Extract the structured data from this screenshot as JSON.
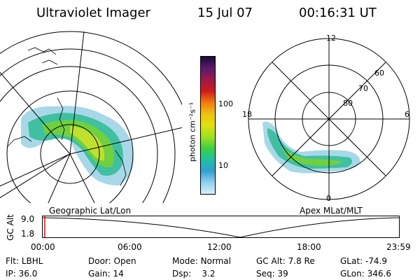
{
  "header": {
    "title": "Ultraviolet Imager",
    "date": "15 Jul 07",
    "time": "00:16:31 UT"
  },
  "left_panel": {
    "caption": "Geographic Lat/Lon"
  },
  "right_panel": {
    "caption": "Apex MLat/MLT",
    "mlt_labels": {
      "top": "12",
      "left": "18",
      "right": "6",
      "bottom": "0"
    },
    "lat_labels": [
      "60",
      "70",
      "80"
    ]
  },
  "colorbar": {
    "unit_label": "photon cm⁻²s⁻¹",
    "tick_100": "100",
    "tick_10": "10",
    "colors": [
      "#1a0a3a",
      "#5a1a6a",
      "#9a1a4a",
      "#d01a1a",
      "#f07a10",
      "#f0c010",
      "#e0e010",
      "#a0e020",
      "#40d040",
      "#20c0a0",
      "#30a0d0",
      "#90d0f0",
      "#d8f0f8"
    ]
  },
  "altitude_plot": {
    "ylabel": "GC Alt",
    "y_ticks": [
      "9.0",
      "1.8"
    ],
    "x_ticks": [
      "00:00",
      "06:00",
      "12:00",
      "18:00",
      "23:59"
    ],
    "current_marker_color": "#ff0000"
  },
  "info": {
    "row1": [
      {
        "label": "Flt:",
        "value": "LBHL"
      },
      {
        "label": "Door:",
        "value": "Open"
      },
      {
        "label": "Mode:",
        "value": "Normal"
      },
      {
        "label": "GC Alt:",
        "value": "7.8 Re"
      },
      {
        "label": "GLat:",
        "value": "-74.9"
      }
    ],
    "row2": [
      {
        "label": "IP:",
        "value": "36.0"
      },
      {
        "label": "Gain:",
        "value": "14"
      },
      {
        "label": "Dsp:",
        "value": "3.2"
      },
      {
        "label": "Seq:",
        "value": "39"
      },
      {
        "label": "GLon:",
        "value": "346.6"
      }
    ]
  }
}
